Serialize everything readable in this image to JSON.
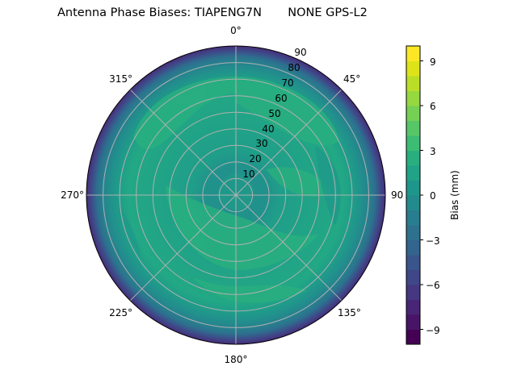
{
  "chart_data": {
    "type": "heatmap",
    "subtype": "polar-filled-contour",
    "title": "Antenna Phase Biases: TIAPENG7N       NONE GPS-L2",
    "title_parts": [
      "Antenna Phase Biases: TIAPENG7N",
      "NONE GPS-L2"
    ],
    "azimuth_tick_labels": [
      "0°",
      "45°",
      "90",
      "135°",
      "180°",
      "225°",
      "270°",
      "315°"
    ],
    "azimuth_ticks_deg": [
      0,
      45,
      90,
      135,
      180,
      225,
      270,
      315
    ],
    "radial_tick_labels": [
      "10",
      "20",
      "30",
      "40",
      "50",
      "60",
      "70",
      "80",
      "90"
    ],
    "radial_ticks": [
      10,
      20,
      30,
      40,
      50,
      60,
      70,
      80,
      90
    ],
    "radial_range": [
      0,
      90
    ],
    "theta_zero_location": "N",
    "theta_direction": "clockwise",
    "grid": true,
    "colorbar": {
      "label": "Bias (mm)",
      "tick_labels": [
        "−9",
        "−6",
        "−3",
        "0",
        "3",
        "6",
        "9"
      ],
      "ticks": [
        -9,
        -6,
        -3,
        0,
        3,
        6,
        9
      ],
      "range": [
        -10,
        10
      ],
      "levels": 20,
      "colormap": "viridis",
      "position": "right"
    },
    "description": "Bias values near 0 to +3 mm across most of the hemisphere (teal/green), with green bands around 40–70° zenith, dropping to about −3 to −9 mm near the horizon (80–90°, blue/purple ring).",
    "radial_profile": [
      {
        "zenith": 0,
        "bias_mm": 0.5
      },
      {
        "zenith": 10,
        "bias_mm": 0.5
      },
      {
        "zenith": 20,
        "bias_mm": 1.0
      },
      {
        "zenith": 30,
        "bias_mm": 1.5
      },
      {
        "zenith": 40,
        "bias_mm": 2.0
      },
      {
        "zenith": 50,
        "bias_mm": 2.0
      },
      {
        "zenith": 60,
        "bias_mm": 2.0
      },
      {
        "zenith": 70,
        "bias_mm": 1.0
      },
      {
        "zenith": 80,
        "bias_mm": -1.5
      },
      {
        "zenith": 85,
        "bias_mm": -4.0
      },
      {
        "zenith": 90,
        "bias_mm": -7.0
      }
    ]
  },
  "colors": {
    "viridis_levels": [
      "#440154",
      "#481467",
      "#482576",
      "#453781",
      "#3f4788",
      "#39558c",
      "#32648e",
      "#2d718e",
      "#287d8e",
      "#238a8d",
      "#1f968b",
      "#20a386",
      "#29af7f",
      "#3dbc74",
      "#56c667",
      "#75d054",
      "#95d840",
      "#bade28",
      "#dde318",
      "#fde725"
    ],
    "grid": "#b0b0b0",
    "axis_edge": "#000000"
  }
}
